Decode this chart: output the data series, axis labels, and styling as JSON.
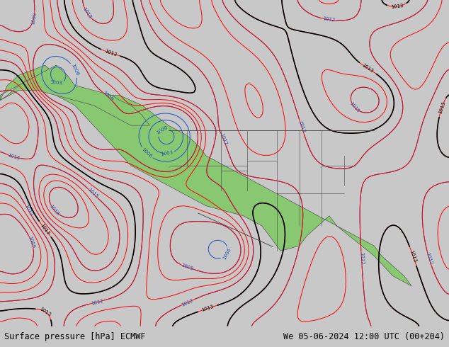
{
  "title_left": "Surface pressure [hPa] ECMWF",
  "title_right": "We 05-06-2024 12:00 UTC (00+204)",
  "background_color": "#f0f0e8",
  "map_bg_land": "#90c878",
  "map_bg_ocean": "#a8d4f0",
  "text_color": "#000000",
  "bottom_bar_color": "#c8c8c8",
  "figsize": [
    6.34,
    4.9
  ],
  "dpi": 100
}
